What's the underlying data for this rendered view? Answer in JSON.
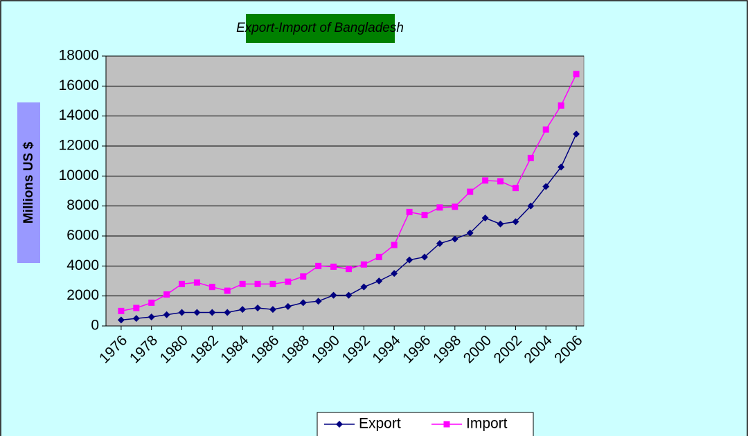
{
  "chart_data": {
    "type": "line",
    "title": "Export-Import of Bangladesh",
    "y_label": "Millions US $",
    "x": [
      1976,
      1977,
      1978,
      1979,
      1980,
      1981,
      1982,
      1983,
      1984,
      1985,
      1986,
      1987,
      1988,
      1989,
      1990,
      1991,
      1992,
      1993,
      1994,
      1995,
      1996,
      1997,
      1998,
      1999,
      2000,
      2001,
      2002,
      2003,
      2004,
      2005,
      2006
    ],
    "xlim": [
      1975,
      2006.5
    ],
    "xticks": [
      1976,
      1978,
      1980,
      1982,
      1984,
      1986,
      1988,
      1990,
      1992,
      1994,
      1996,
      1998,
      2000,
      2002,
      2004,
      2006
    ],
    "ylim": [
      0,
      18000
    ],
    "yticks": [
      0,
      2000,
      4000,
      6000,
      8000,
      10000,
      12000,
      14000,
      16000,
      18000
    ],
    "grid": true,
    "legend": "bottom",
    "series": [
      {
        "name": "Export",
        "color": "#000080",
        "marker": "diamond",
        "values": [
          400,
          500,
          600,
          750,
          900,
          900,
          900,
          900,
          1100,
          1200,
          1100,
          1300,
          1550,
          1650,
          2050,
          2050,
          2600,
          3000,
          3500,
          4400,
          4600,
          5500,
          5800,
          6200,
          7200,
          6800,
          6950,
          8000,
          9300,
          10600,
          12800
        ]
      },
      {
        "name": "Import",
        "color": "#ff00ff",
        "marker": "square",
        "values": [
          1000,
          1200,
          1550,
          2100,
          2800,
          2900,
          2600,
          2350,
          2800,
          2800,
          2800,
          2950,
          3300,
          4000,
          3950,
          3800,
          4100,
          4600,
          5400,
          7600,
          7400,
          7900,
          7950,
          8950,
          9700,
          9650,
          9200,
          11200,
          13100,
          14700,
          16800
        ]
      }
    ]
  }
}
